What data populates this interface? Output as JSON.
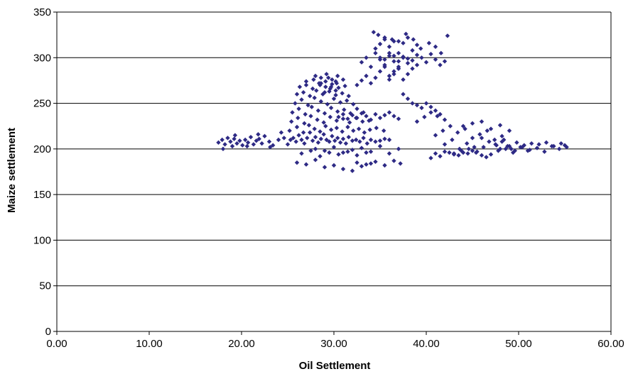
{
  "chart_data": {
    "type": "scatter",
    "title": "",
    "xlabel": "Oil Settlement",
    "ylabel": "Maize settlement",
    "xlim": [
      0,
      60
    ],
    "ylim": [
      0,
      350
    ],
    "xticks": [
      0,
      10,
      20,
      30,
      40,
      50,
      60
    ],
    "xtick_labels": [
      "0.00",
      "10.00",
      "20.00",
      "30.00",
      "40.00",
      "50.00",
      "60.00"
    ],
    "yticks": [
      0,
      50,
      100,
      150,
      200,
      250,
      300,
      350
    ],
    "ytick_labels": [
      "0",
      "50",
      "100",
      "150",
      "200",
      "250",
      "300",
      "350"
    ],
    "grid": "horizontal",
    "legend": "none",
    "marker": "diamond",
    "colors": {
      "marker": "#2e2a85",
      "axis": "#000000",
      "grid": "#000000"
    },
    "series": [
      {
        "x": [
          17.5,
          17.9,
          18.2,
          18.5,
          18.8,
          19.0,
          19.2,
          19.5,
          19.8,
          20.1,
          20.4,
          20.7,
          21.0,
          21.3,
          21.6,
          21.9,
          22.2,
          22.5,
          23.0,
          23.4,
          24.0,
          24.6,
          18.0,
          19.3,
          20.6,
          21.8,
          23.1,
          24.3,
          25.0,
          25.3,
          25.6,
          25.9,
          26.2,
          26.5,
          26.8,
          27.1,
          27.4,
          27.7,
          28.0,
          28.3,
          28.6,
          28.9,
          29.2,
          29.5,
          29.8,
          30.1,
          30.4,
          30.7,
          31.0,
          31.3,
          31.6,
          32.0,
          32.4,
          32.8,
          33.2,
          33.6,
          34.0,
          34.5,
          35.0,
          35.5,
          36.0,
          25.2,
          26.0,
          26.7,
          27.3,
          27.9,
          28.5,
          29.1,
          29.7,
          30.3,
          30.9,
          31.5,
          32.1,
          32.7,
          33.3,
          33.9,
          34.6,
          35.4,
          25.4,
          26.1,
          26.8,
          27.5,
          28.2,
          28.9,
          29.6,
          30.3,
          31.0,
          31.7,
          32.4,
          33.1,
          33.8,
          25.5,
          26.2,
          26.9,
          27.6,
          28.3,
          29.0,
          29.7,
          30.4,
          31.1,
          31.8,
          32.5,
          33.2,
          25.8,
          26.5,
          27.2,
          27.9,
          28.6,
          29.3,
          30.0,
          30.7,
          31.4,
          32.1,
          26.0,
          26.7,
          27.4,
          28.1,
          28.8,
          29.5,
          30.2,
          30.9,
          31.6,
          26.3,
          27.0,
          27.7,
          28.4,
          29.1,
          29.8,
          30.5,
          31.2,
          27.0,
          27.8,
          28.6,
          29.4,
          30.2,
          31.0,
          28.0,
          28.6,
          29.2,
          29.8,
          30.4,
          28.5,
          29.1,
          29.7,
          30.3,
          29.0,
          29.6,
          30.2,
          26.5,
          27.5,
          28.5,
          29.5,
          30.5,
          31.5,
          32.5,
          33.5,
          26.0,
          27.0,
          28.0,
          29.0,
          30.0,
          31.0,
          32.0,
          33.0,
          34.0,
          30.5,
          31.0,
          31.5,
          32.0,
          32.5,
          33.0,
          33.5,
          34.0,
          34.5,
          35.0,
          35.5,
          36.0,
          36.5,
          37.0,
          28.0,
          29.0,
          30.0,
          31.0,
          32.0,
          33.0,
          34.0,
          35.0,
          36.0,
          37.0,
          32.5,
          33.5,
          34.5,
          35.5,
          36.5,
          37.2,
          32.5,
          33.0,
          33.5,
          34.0,
          34.5,
          35.0,
          35.5,
          36.0,
          36.5,
          37.0,
          33.0,
          33.5,
          34.0,
          34.5,
          35.0,
          35.5,
          36.0,
          36.5,
          37.0,
          37.5,
          38.0,
          34.5,
          35.0,
          35.5,
          36.0,
          36.5,
          37.0,
          37.5,
          38.0,
          38.5,
          39.0,
          35.0,
          35.5,
          36.0,
          36.5,
          37.0,
          37.5,
          38.0,
          38.5,
          39.0,
          39.5,
          40.0,
          40.5,
          41.0,
          41.5,
          42.0,
          36.0,
          36.5,
          37.0,
          37.5,
          38.0,
          38.5,
          39.0,
          34.3,
          34.8,
          35.5,
          36.3,
          37.0,
          37.8,
          38.6,
          39.4,
          40.3,
          41.0,
          41.6,
          42.3,
          37.5,
          38.0,
          38.5,
          39.0,
          39.5,
          40.0,
          40.5,
          41.0,
          41.5,
          39.0,
          39.8,
          40.5,
          41.2,
          42.0,
          41.0,
          41.8,
          42.6,
          43.4,
          44.2,
          45.0,
          45.8,
          46.6,
          47.4,
          48.2,
          42.0,
          42.8,
          43.6,
          44.4,
          45.2,
          46.0,
          46.8,
          47.6,
          48.4,
          49.2,
          43.0,
          43.8,
          44.6,
          45.4,
          46.2,
          47.0,
          47.8,
          48.6,
          49.4,
          50.2,
          51.0,
          47.5,
          48.2,
          49.0,
          49.8,
          50.6,
          51.4,
          52.2,
          53.0,
          53.8,
          54.6,
          55.0,
          48.0,
          48.8,
          49.6,
          50.4,
          51.2,
          52.0,
          52.8,
          53.6,
          54.4,
          55.2,
          44.0,
          45.0,
          46.0,
          47.0,
          48.0,
          49.0,
          41.0,
          42.0,
          43.0,
          44.0,
          45.0,
          46.0,
          40.5,
          41.5,
          42.5,
          43.5,
          44.5,
          45.5,
          46.5
        ],
        "y": [
          207,
          210,
          205,
          212,
          208,
          203,
          211,
          206,
          209,
          204,
          210,
          207,
          213,
          205,
          209,
          211,
          206,
          214,
          208,
          204,
          210,
          212,
          200,
          215,
          203,
          216,
          202,
          218,
          205,
          210,
          212,
          208,
          215,
          210,
          206,
          212,
          218,
          209,
          213,
          207,
          211,
          216,
          210,
          208,
          214,
          209,
          212,
          207,
          211,
          206,
          213,
          209,
          210,
          208,
          212,
          206,
          210,
          208,
          209,
          211,
          210,
          220,
          224,
          218,
          226,
          222,
          219,
          225,
          221,
          223,
          219,
          224,
          220,
          222,
          218,
          221,
          223,
          220,
          230,
          234,
          228,
          236,
          232,
          229,
          235,
          231,
          233,
          229,
          234,
          230,
          231,
          240,
          244,
          238,
          246,
          242,
          239,
          245,
          241,
          243,
          239,
          244,
          240,
          250,
          254,
          248,
          256,
          252,
          249,
          255,
          251,
          253,
          249,
          260,
          262,
          258,
          264,
          260,
          263,
          259,
          261,
          258,
          268,
          270,
          266,
          272,
          268,
          271,
          267,
          269,
          274,
          276,
          272,
          278,
          274,
          276,
          280,
          278,
          282,
          276,
          280,
          270,
          274,
          268,
          272,
          262,
          266,
          264,
          195,
          198,
          192,
          196,
          194,
          197,
          193,
          196,
          185,
          183,
          188,
          180,
          182,
          178,
          176,
          181,
          184,
          235,
          238,
          233,
          237,
          234,
          239,
          236,
          232,
          238,
          234,
          237,
          240,
          236,
          233,
          200,
          198,
          202,
          196,
          199,
          201,
          197,
          203,
          195,
          200,
          185,
          183,
          186,
          182,
          187,
          184,
          270,
          275,
          280,
          272,
          278,
          285,
          290,
          276,
          282,
          288,
          295,
          300,
          290,
          305,
          298,
          292,
          302,
          296,
          288,
          300,
          294,
          310,
          315,
          320,
          312,
          318,
          305,
          316,
          322,
          308,
          314,
          300,
          298,
          305,
          302,
          296,
          301,
          299,
          297,
          303,
          300,
          295,
          304,
          298,
          292,
          296,
          280,
          285,
          290,
          276,
          282,
          288,
          292,
          328,
          325,
          322,
          320,
          318,
          326,
          320,
          310,
          316,
          312,
          305,
          324,
          260,
          255,
          250,
          248,
          245,
          250,
          246,
          242,
          238,
          230,
          235,
          240,
          236,
          232,
          215,
          220,
          225,
          218,
          222,
          212,
          216,
          220,
          210,
          214,
          205,
          210,
          200,
          206,
          202,
          212,
          208,
          204,
          210,
          200,
          195,
          198,
          200,
          196,
          202,
          194,
          198,
          200,
          196,
          202,
          198,
          205,
          208,
          203,
          207,
          204,
          206,
          205,
          207,
          203,
          206,
          204,
          200,
          203,
          198,
          202,
          199,
          201,
          197,
          203,
          200,
          202,
          225,
          228,
          230,
          222,
          226,
          220,
          195,
          197,
          194,
          196,
          198,
          193,
          190,
          192,
          196,
          193,
          195,
          197,
          191
        ]
      }
    ]
  }
}
